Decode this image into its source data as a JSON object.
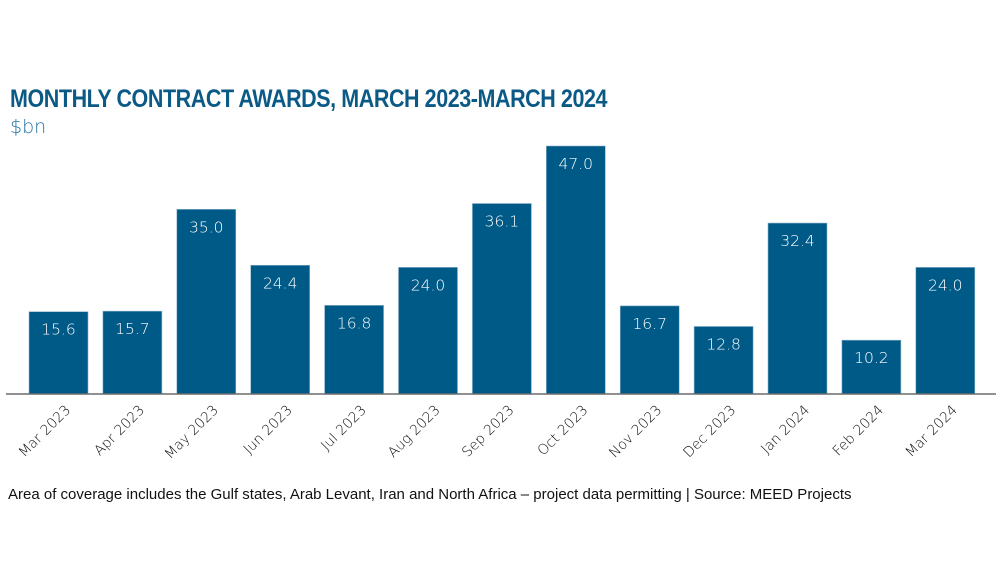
{
  "chart_data": {
    "type": "bar",
    "title": "MONTHLY CONTRACT AWARDS, MARCH 2023-MARCH 2024",
    "subtitle": "$bn",
    "xlabel": "",
    "ylabel": "$bn",
    "categories": [
      "Mar 2023",
      "Apr 2023",
      "May 2023",
      "Jun 2023",
      "Jul 2023",
      "Aug 2023",
      "Sep 2023",
      "Oct 2023",
      "Nov 2023",
      "Dec 2023",
      "Jan 2024",
      "Feb 2024",
      "Mar 2024"
    ],
    "values": [
      15.6,
      15.7,
      35.0,
      24.4,
      16.8,
      24.0,
      36.1,
      47.0,
      16.7,
      12.8,
      32.4,
      10.2,
      24.0
    ],
    "value_labels": [
      "15.6",
      "15.7",
      "35.0",
      "24.4",
      "16.8",
      "24.0",
      "36.1",
      "47.0",
      "16.7",
      "12.8",
      "32.4",
      "10.2",
      "24.0"
    ],
    "ylim": [
      0,
      47
    ],
    "grid": false,
    "legend": "none",
    "bar_color": "#005a87",
    "label_color": "#ffffff"
  },
  "footnote": "Area of coverage includes the Gulf states, Arab Levant, Iran and North Africa – project data permitting | Source: MEED Projects"
}
